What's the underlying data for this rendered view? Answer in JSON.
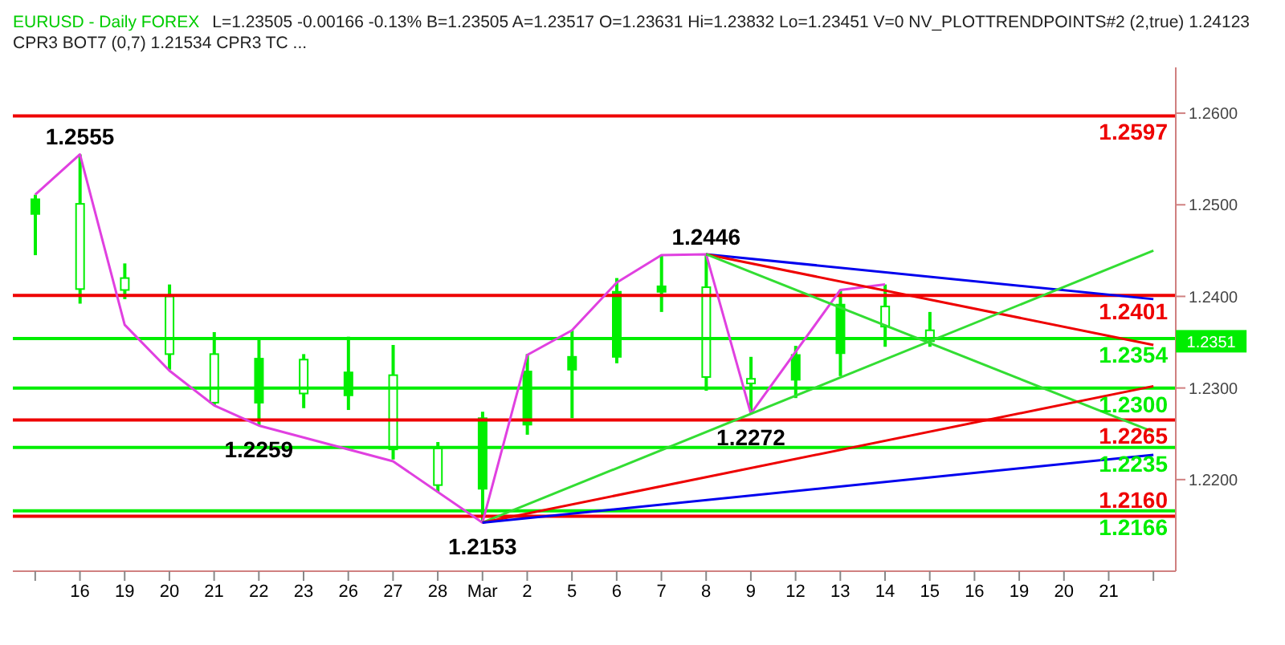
{
  "chart_data": {
    "type": "candlestick",
    "title": "EURUSD - Daily  FOREX",
    "subtitle": "L=1.23505  -0.00166  -0.13%  B=1.23505  A=1.23517  O=1.23631  Hi=1.23832  Lo=1.23451  V=0  NV_PLOTTRENDPOINTS#2 (2,true)  1.24123  CPR3 BOT7 (0,7)  1.21534  CPR3 TC ...",
    "categories": [
      null,
      "16",
      "19",
      "20",
      "21",
      "22",
      "23",
      "26",
      "27",
      "28",
      "Mar",
      "2",
      "5",
      "6",
      "7",
      "8",
      "9",
      "12",
      "13",
      "14",
      "15",
      "16",
      "19",
      "20",
      "21",
      null
    ],
    "color": "#00ee00",
    "ohlc": [
      [
        1.249,
        1.2511,
        1.2445,
        1.2506
      ],
      [
        1.2501,
        1.2555,
        1.2392,
        1.2408
      ],
      [
        1.242,
        1.2436,
        1.2397,
        1.2407
      ],
      [
        1.24,
        1.2413,
        1.232,
        1.2337
      ],
      [
        1.2337,
        1.2361,
        1.2281,
        1.2284
      ],
      [
        1.2284,
        1.2354,
        1.2259,
        1.2332
      ],
      [
        1.2331,
        1.2337,
        1.2278,
        1.2294
      ],
      [
        1.2292,
        1.2356,
        1.2276,
        1.2317
      ],
      [
        1.2314,
        1.2347,
        1.2222,
        1.2233
      ],
      [
        1.2234,
        1.2241,
        1.2186,
        1.2194
      ],
      [
        1.219,
        1.2274,
        1.2153,
        1.2267
      ],
      [
        1.226,
        1.2337,
        1.2249,
        1.2318
      ],
      [
        1.232,
        1.2363,
        1.2267,
        1.2334
      ],
      [
        1.2334,
        1.242,
        1.2327,
        1.2405
      ],
      [
        1.2405,
        1.2445,
        1.2383,
        1.2411
      ],
      [
        1.241,
        1.2446,
        1.2297,
        1.2312
      ],
      [
        1.231,
        1.2334,
        1.2272,
        1.2305
      ],
      [
        1.2309,
        1.2346,
        1.2289,
        1.2336
      ],
      [
        1.2338,
        1.2407,
        1.2313,
        1.2391
      ],
      [
        1.2389,
        1.2413,
        1.2345,
        1.2367
      ],
      [
        1.2363,
        1.2383,
        1.2345,
        1.2351
      ],
      null,
      null,
      null,
      null,
      null
    ],
    "series": [
      {
        "type": "line",
        "color": "#e040e0",
        "values": [
          1.2511,
          1.2555,
          1.2369,
          1.2319,
          1.2281,
          1.2259,
          null,
          null,
          1.222,
          null,
          1.2153,
          1.2336,
          1.2363,
          1.2415,
          1.2445,
          1.2446,
          1.2272,
          null,
          1.2407,
          1.2413,
          null,
          null,
          null,
          null,
          null,
          null
        ]
      },
      {
        "type": "line",
        "color": "#0000ee",
        "values": [
          null,
          null,
          null,
          null,
          null,
          null,
          null,
          null,
          null,
          null,
          null,
          null,
          null,
          null,
          null,
          1.2446,
          null,
          null,
          null,
          null,
          null,
          null,
          null,
          null,
          null,
          1.2397
        ]
      },
      {
        "type": "line",
        "color": "#ee0000",
        "values": [
          null,
          null,
          null,
          null,
          null,
          null,
          null,
          null,
          null,
          null,
          null,
          null,
          null,
          null,
          null,
          1.2446,
          null,
          null,
          null,
          null,
          null,
          null,
          null,
          null,
          null,
          1.2347
        ]
      },
      {
        "type": "line",
        "color": "#33dd33",
        "values": [
          null,
          null,
          null,
          null,
          null,
          null,
          null,
          null,
          null,
          null,
          null,
          null,
          null,
          null,
          null,
          1.2446,
          null,
          null,
          null,
          null,
          null,
          null,
          null,
          null,
          null,
          1.2252
        ]
      },
      {
        "type": "line",
        "color": "#33dd33",
        "values": [
          null,
          null,
          null,
          null,
          null,
          null,
          null,
          null,
          null,
          null,
          1.2153,
          null,
          null,
          null,
          null,
          null,
          null,
          null,
          null,
          null,
          null,
          null,
          null,
          null,
          null,
          1.245
        ]
      },
      {
        "type": "line",
        "color": "#ee0000",
        "values": [
          null,
          null,
          null,
          null,
          null,
          null,
          null,
          null,
          null,
          null,
          1.2153,
          null,
          null,
          null,
          null,
          null,
          null,
          null,
          null,
          null,
          null,
          null,
          null,
          null,
          null,
          1.2302
        ]
      },
      {
        "type": "line",
        "color": "#0000ee",
        "values": [
          null,
          null,
          null,
          null,
          null,
          null,
          null,
          null,
          null,
          null,
          1.2153,
          null,
          null,
          null,
          null,
          null,
          null,
          null,
          null,
          null,
          null,
          null,
          null,
          null,
          null,
          1.2227
        ]
      }
    ],
    "ref_lines": [
      {
        "axis": "y",
        "value": 1.2597,
        "label": "1.2597",
        "color": "#ee0000"
      },
      {
        "axis": "y",
        "value": 1.2401,
        "label": "1.2401",
        "color": "#ee0000"
      },
      {
        "axis": "y",
        "value": 1.2354,
        "label": "1.2354",
        "color": "#00ee00"
      },
      {
        "axis": "y",
        "value": 1.23,
        "label": "1.2300",
        "color": "#00ee00"
      },
      {
        "axis": "y",
        "value": 1.2265,
        "label": "1.2265",
        "color": "#ee0000"
      },
      {
        "axis": "y",
        "value": 1.2235,
        "label": "1.2235",
        "color": "#00ee00"
      },
      {
        "axis": "y",
        "value": 1.2166,
        "label": "1.2166",
        "color": "#00ee00"
      },
      {
        "axis": "y",
        "value": 1.216,
        "label": "1.2160",
        "color": "#ee0000"
      }
    ],
    "annotations": [
      {
        "text": "1.2555",
        "x": "16",
        "y": 1.2555
      },
      {
        "text": "1.2259",
        "x": "22",
        "y": 1.2259
      },
      {
        "text": "1.2153",
        "x": "Mar",
        "y": 1.2153
      },
      {
        "text": "1.2446",
        "x": "8",
        "y": 1.2446
      },
      {
        "text": "1.2272",
        "x": "9",
        "y": 1.2272
      },
      {
        "text": "1.2351",
        "y": 1.2351
      }
    ],
    "ylim": [
      1.21,
      1.265
    ],
    "yticks": [
      {
        "value": 1.22,
        "label": "1.2200"
      },
      {
        "value": 1.23,
        "label": "1.2300"
      },
      {
        "value": 1.24,
        "label": "1.2400"
      },
      {
        "value": 1.25,
        "label": "1.2500"
      },
      {
        "value": 1.26,
        "label": "1.2600"
      }
    ],
    "grid": false,
    "legend": false,
    "marker": "none"
  }
}
